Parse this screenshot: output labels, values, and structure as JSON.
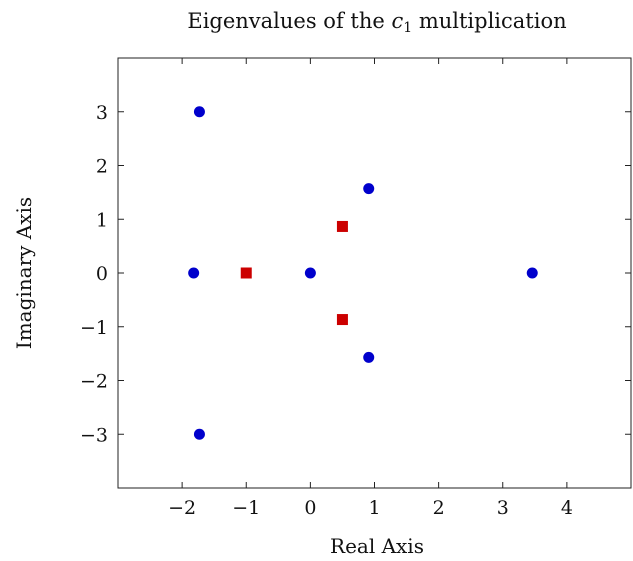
{
  "chart_data": {
    "type": "scatter",
    "title": "Eigenvalues of the c₁ multiplication",
    "xlabel": "Real Axis",
    "ylabel": "Imaginary Axis",
    "xlim": [
      -3,
      5
    ],
    "ylim": [
      -4,
      4
    ],
    "xticks": [
      -2,
      -1,
      0,
      1,
      2,
      3,
      4
    ],
    "yticks": [
      -3,
      -2,
      -1,
      0,
      1,
      2,
      3
    ],
    "xtick_labels": [
      "−2",
      "−1",
      "0",
      "1",
      "2",
      "3",
      "4"
    ],
    "ytick_labels": [
      "−3",
      "−2",
      "−1",
      "0",
      "1",
      "2",
      "3"
    ],
    "grid": false,
    "series": [
      {
        "marker": "circle",
        "color": "#0000cc",
        "points": [
          {
            "x": -1.73,
            "y": 3.0
          },
          {
            "x": -1.82,
            "y": 0.0
          },
          {
            "x": -1.73,
            "y": -3.0
          },
          {
            "x": 0.0,
            "y": 0.0
          },
          {
            "x": 0.91,
            "y": 1.57
          },
          {
            "x": 0.91,
            "y": -1.57
          },
          {
            "x": 3.46,
            "y": 0.0
          }
        ]
      },
      {
        "marker": "square",
        "color": "#cc0000",
        "points": [
          {
            "x": -1.0,
            "y": 0.0
          },
          {
            "x": 0.5,
            "y": 0.866
          },
          {
            "x": 0.5,
            "y": -0.866
          }
        ]
      }
    ]
  }
}
